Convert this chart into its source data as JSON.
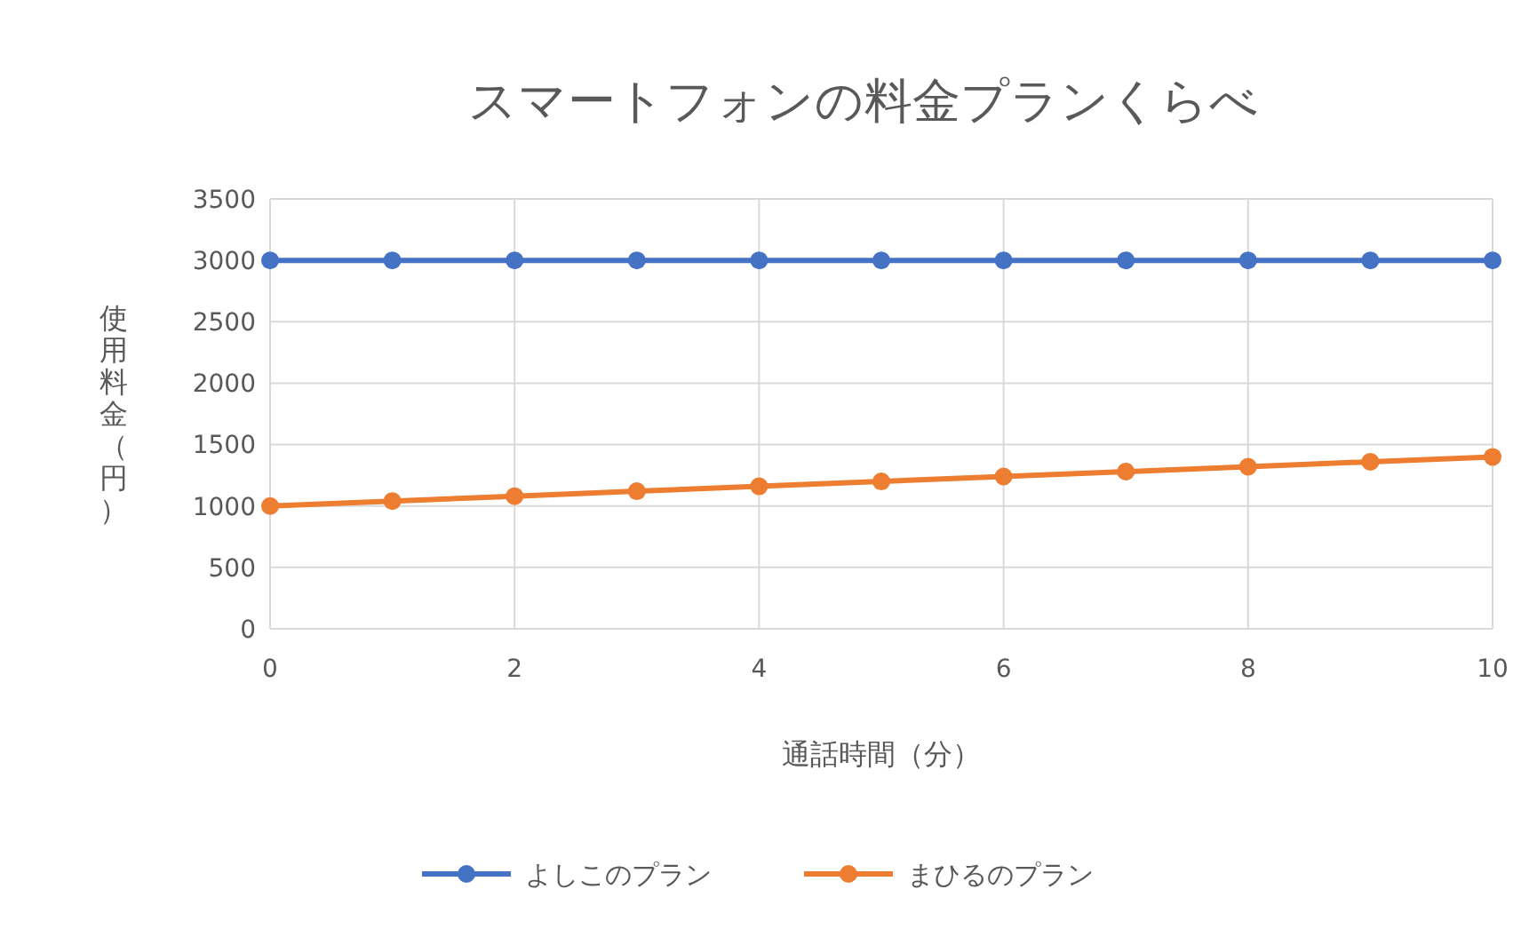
{
  "chart_data": {
    "type": "line",
    "title": "スマートフォンの料金プランくらべ",
    "xlabel": "通話時間（分）",
    "ylabel": "使用料金（円）",
    "x": [
      0,
      1,
      2,
      3,
      4,
      5,
      6,
      7,
      8,
      9,
      10
    ],
    "series": [
      {
        "name": "よしこのプラン",
        "color": "#4472c4",
        "values": [
          3000,
          3000,
          3000,
          3000,
          3000,
          3000,
          3000,
          3000,
          3000,
          3000,
          3000
        ]
      },
      {
        "name": "まひるのプラン",
        "color": "#ed7d31",
        "values": [
          1000,
          1040,
          1080,
          1120,
          1160,
          1200,
          1240,
          1280,
          1320,
          1360,
          1400
        ]
      }
    ],
    "xlim": [
      0,
      10
    ],
    "xticks": [
      0,
      2,
      4,
      6,
      8,
      10
    ],
    "ylim": [
      0,
      3500
    ],
    "yticks": [
      0,
      500,
      1000,
      1500,
      2000,
      2500,
      3000,
      3500
    ],
    "grid": true,
    "legend": "bottom",
    "marker": "circle",
    "line_style": "solid"
  }
}
